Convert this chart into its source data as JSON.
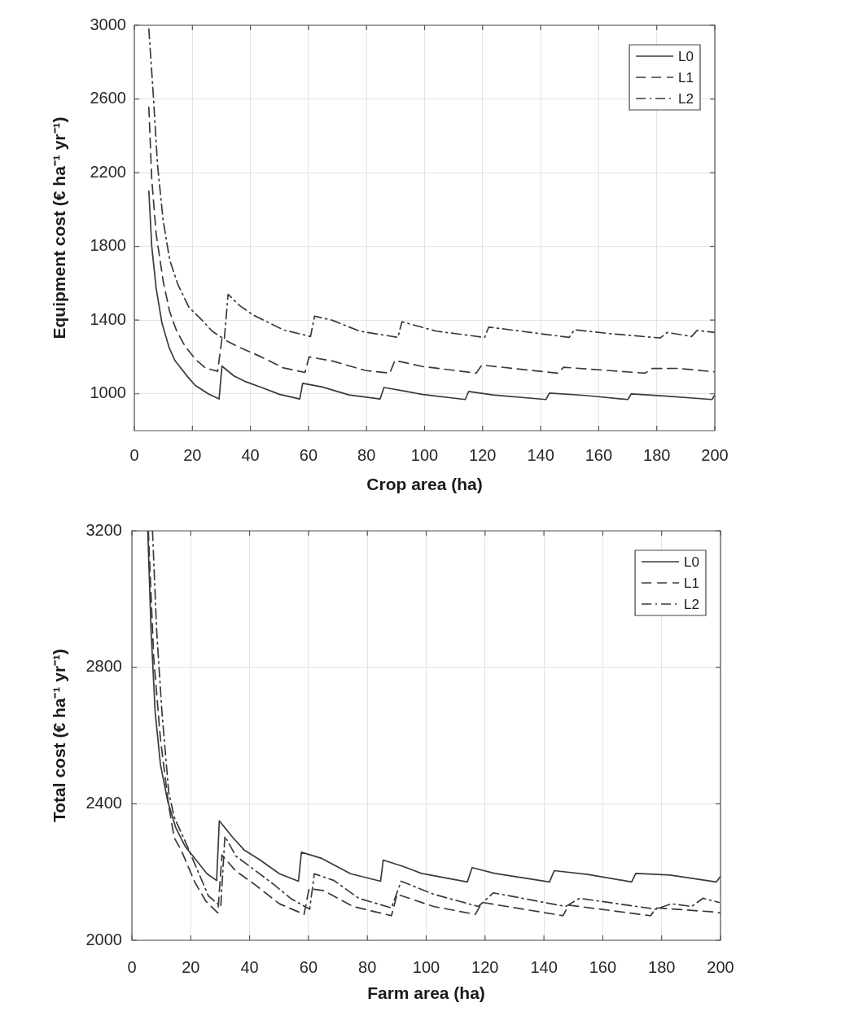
{
  "chart_data": [
    {
      "type": "line",
      "xlabel": "Crop area (ha)",
      "ylabel": "Equipment cost (€ ha⁻¹ yr⁻¹)",
      "xlim": [
        0,
        200
      ],
      "xticks": [
        0,
        20,
        40,
        60,
        80,
        100,
        120,
        140,
        160,
        180,
        200
      ],
      "ylim": [
        800,
        3000
      ],
      "yticks": [
        1000,
        1400,
        1800,
        2200,
        2600,
        3000
      ],
      "grid": true,
      "legend": "top right",
      "marker": "none",
      "series": [
        {
          "name": "L0",
          "color": "#3a3a3a",
          "line_style": "solid",
          "x": [
            5,
            6,
            7.5,
            9.5,
            12,
            14,
            16,
            18.5,
            21,
            25.5,
            29.2,
            30.2,
            34.3,
            38,
            43.7,
            50,
            57,
            58,
            64.5,
            74,
            84.7,
            86,
            92.7,
            99,
            114,
            115.2,
            123.5,
            141.8,
            143,
            155.4,
            170,
            171.2,
            183.6,
            199,
            200
          ],
          "values": [
            2100,
            1800,
            1575,
            1385,
            1250,
            1180,
            1140,
            1090,
            1045,
            1000,
            972,
            1150,
            1097,
            1068,
            1035,
            997,
            972,
            1057,
            1038,
            994,
            972,
            1034,
            1016,
            997,
            969,
            1013,
            994,
            969,
            1004,
            991,
            969,
            999,
            987,
            969,
            994
          ]
        },
        {
          "name": "L1",
          "color": "#3a3a3a",
          "line_style": "dashed",
          "x": [
            5,
            6,
            7.5,
            10,
            12.2,
            14.6,
            17.4,
            21.2,
            24.5,
            28.7,
            30.2,
            36.2,
            42.8,
            51.3,
            58.8,
            60.2,
            68.2,
            79.5,
            88,
            89.8,
            99,
            117.8,
            119.7,
            146,
            147.9,
            176,
            178.4,
            187.3,
            200
          ],
          "values": [
            2555,
            2165,
            1870,
            1605,
            1445,
            1340,
            1260,
            1185,
            1140,
            1122,
            1300,
            1252,
            1207,
            1141,
            1116,
            1200,
            1178,
            1127,
            1112,
            1181,
            1149,
            1112,
            1156,
            1112,
            1144,
            1112,
            1137,
            1138,
            1119
          ]
        },
        {
          "name": "L2",
          "color": "#3a3a3a",
          "line_style": "dashdot",
          "x": [
            5,
            6.6,
            8,
            9.9,
            12.2,
            15.1,
            18.8,
            23,
            26.8,
            31,
            32.3,
            36.2,
            40.9,
            51.3,
            60.7,
            62.1,
            68.2,
            77.6,
            90.8,
            92.2,
            104,
            120.7,
            122.1,
            136.6,
            149.8,
            151.6,
            164.8,
            181.2,
            183.6,
            192,
            193.9,
            200
          ],
          "values": [
            2980,
            2605,
            2240,
            1945,
            1725,
            1590,
            1470,
            1405,
            1340,
            1296,
            1540,
            1480,
            1428,
            1347,
            1311,
            1421,
            1399,
            1340,
            1306,
            1391,
            1340,
            1306,
            1362,
            1333,
            1306,
            1347,
            1325,
            1303,
            1333,
            1311,
            1344,
            1333
          ]
        }
      ]
    },
    {
      "type": "line",
      "xlabel": "Farm area (ha)",
      "ylabel": "Total cost (€ ha⁻¹ yr⁻¹)",
      "xlim": [
        0,
        200
      ],
      "xticks": [
        0,
        20,
        40,
        60,
        80,
        100,
        120,
        140,
        160,
        180,
        200
      ],
      "ylim": [
        2000,
        3200
      ],
      "yticks": [
        2000,
        2400,
        2800,
        3200
      ],
      "grid": true,
      "legend": "top right",
      "marker": "none",
      "series": [
        {
          "name": "L0",
          "color": "#3a3a3a",
          "line_style": "solid",
          "x": [
            5.4,
            6.5,
            7.9,
            9.7,
            12.1,
            14.9,
            18.1,
            20.9,
            25.5,
            28.8,
            29.7,
            34.4,
            38.1,
            43.6,
            50.1,
            56.6,
            57.6,
            64.5,
            74.3,
            84.5,
            85.4,
            91.9,
            98.4,
            114,
            115.6,
            123.3,
            141.9,
            143.5,
            154.9,
            169.8,
            171.2,
            182.8,
            198.6,
            200
          ],
          "values": [
            3200,
            2910,
            2670,
            2515,
            2410,
            2330,
            2275,
            2245,
            2195,
            2175,
            2350,
            2300,
            2265,
            2235,
            2195,
            2173,
            2258,
            2240,
            2195,
            2173,
            2235,
            2217,
            2196,
            2171,
            2213,
            2196,
            2171,
            2204,
            2193,
            2171,
            2196,
            2191,
            2171,
            2187
          ]
        },
        {
          "name": "L1",
          "color": "#3a3a3a",
          "line_style": "dashed",
          "x": [
            5.6,
            7.4,
            9.7,
            12.5,
            14.4,
            16.7,
            21.4,
            25.1,
            29.2,
            30.6,
            35.3,
            41.8,
            50.1,
            58.5,
            60.2,
            65,
            75.2,
            88.2,
            90.1,
            95.6,
            102.5,
            116.7,
            119,
            146.5,
            148.4,
            176.3,
            178.1,
            197.7,
            200
          ],
          "values": [
            3200,
            2830,
            2590,
            2395,
            2300,
            2265,
            2170,
            2115,
            2080,
            2250,
            2203,
            2163,
            2107,
            2076,
            2151,
            2146,
            2099,
            2072,
            2135,
            2119,
            2099,
            2076,
            2111,
            2072,
            2103,
            2072,
            2095,
            2083,
            2080
          ]
        },
        {
          "name": "L2",
          "color": "#3a3a3a",
          "line_style": "dashdot",
          "x": [
            7,
            8.4,
            10.2,
            12.5,
            14.4,
            18.1,
            22.3,
            26,
            30.2,
            31.6,
            35.3,
            40.9,
            48.3,
            53.9,
            60.4,
            62,
            68.7,
            77.1,
            88.2,
            91.5,
            102.5,
            117.7,
            122.8,
            147.4,
            152.1,
            178.1,
            183.3,
            190.2,
            194,
            199.5
          ],
          "values": [
            3200,
            2910,
            2670,
            2435,
            2360,
            2290,
            2205,
            2130,
            2099,
            2305,
            2247,
            2211,
            2163,
            2123,
            2091,
            2195,
            2175,
            2123,
            2095,
            2173,
            2135,
            2099,
            2139,
            2099,
            2123,
            2091,
            2107,
            2099,
            2123,
            2111
          ]
        }
      ]
    }
  ]
}
